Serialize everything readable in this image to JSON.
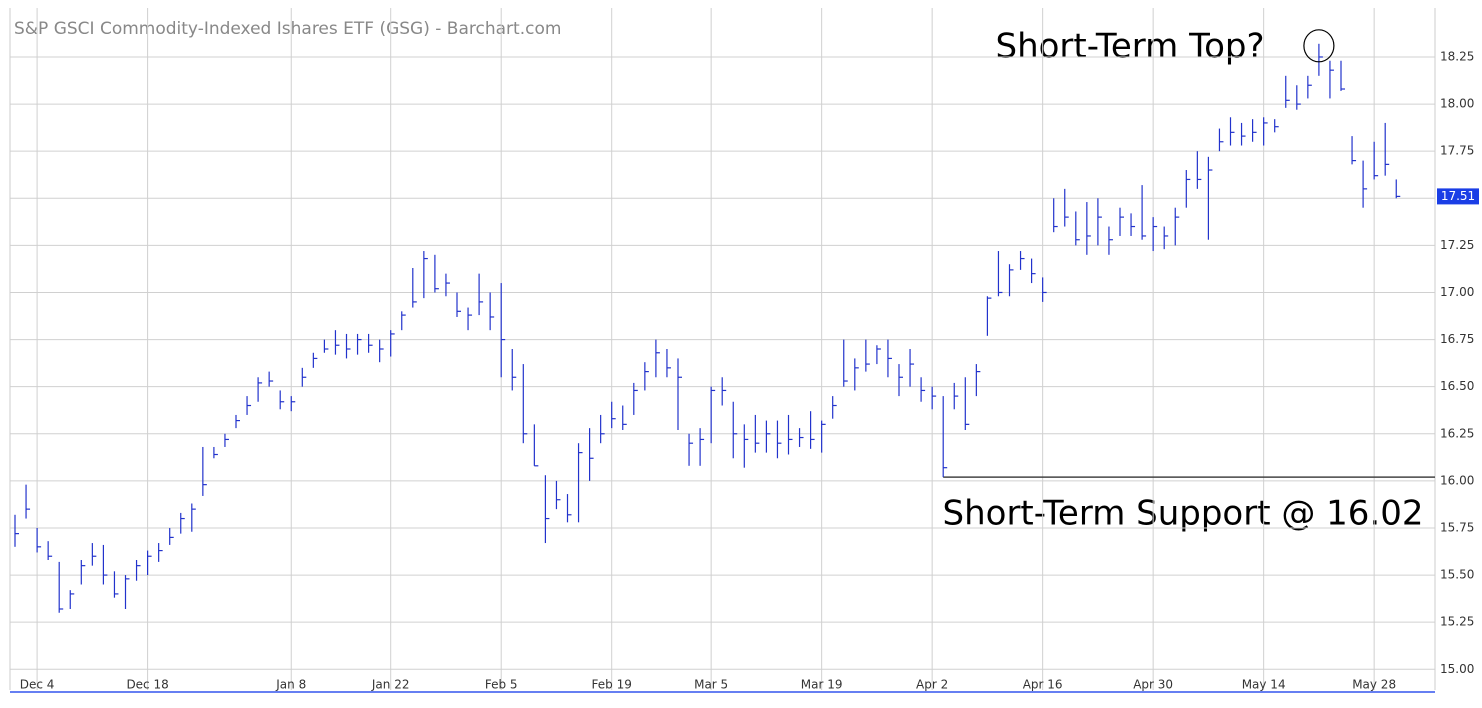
{
  "chart_data": {
    "type": "hlc",
    "title": "S&P GSCI Commodity-Indexed Ishares ETF (GSG) - Barchart.com",
    "annotations": [
      "Short-Term Top?",
      "Short-Term Support @ 16.02"
    ],
    "support_level": 16.02,
    "color": "#2233cc",
    "grid": true,
    "ylim": [
      14.89,
      18.51
    ],
    "yticks": [
      {
        "value": 15,
        "label": "15.00"
      },
      {
        "value": 15.25,
        "label": "15.25"
      },
      {
        "value": 15.5,
        "label": "15.50"
      },
      {
        "value": 15.75,
        "label": "15.75"
      },
      {
        "value": 16,
        "label": "16.00"
      },
      {
        "value": 16.25,
        "label": "16.25"
      },
      {
        "value": 16.5,
        "label": "16.50"
      },
      {
        "value": 16.75,
        "label": "16.75"
      },
      {
        "value": 17,
        "label": "17.00"
      },
      {
        "value": 17.25,
        "label": "17.25"
      },
      {
        "value": 17.5,
        "label": "17.50"
      },
      {
        "value": 17.75,
        "label": "17.75"
      },
      {
        "value": 18,
        "label": "18.00"
      },
      {
        "value": 18.25,
        "label": "18.25"
      }
    ],
    "categories": [
      null,
      null,
      "Dec 4",
      null,
      null,
      null,
      null,
      null,
      null,
      null,
      null,
      null,
      "Dec 18",
      null,
      null,
      null,
      null,
      null,
      null,
      null,
      null,
      null,
      null,
      null,
      null,
      "Jan 8",
      null,
      null,
      null,
      null,
      null,
      null,
      null,
      null,
      "Jan 22",
      null,
      null,
      null,
      null,
      null,
      null,
      null,
      null,
      null,
      "Feb 5",
      null,
      null,
      null,
      null,
      null,
      null,
      null,
      null,
      null,
      "Feb 19",
      null,
      null,
      null,
      null,
      null,
      null,
      null,
      null,
      "Mar 5",
      null,
      null,
      null,
      null,
      null,
      null,
      null,
      null,
      null,
      "Mar 19",
      null,
      null,
      null,
      null,
      null,
      null,
      null,
      null,
      null,
      "Apr 2",
      null,
      null,
      null,
      null,
      null,
      null,
      null,
      null,
      null,
      "Apr 16",
      null,
      null,
      null,
      null,
      null,
      null,
      null,
      null,
      null,
      "Apr 30",
      null,
      null,
      null,
      null,
      null,
      null,
      null,
      null,
      null,
      "May 14",
      null,
      null,
      null,
      null,
      null,
      null,
      null,
      null,
      null,
      "May 28",
      null,
      null
    ],
    "high": [
      15.82,
      15.98,
      15.75,
      15.68,
      15.57,
      15.42,
      15.58,
      15.67,
      15.66,
      15.52,
      15.5,
      15.58,
      15.63,
      15.67,
      15.75,
      15.83,
      15.88,
      16.18,
      16.18,
      16.25,
      16.35,
      16.45,
      16.55,
      16.58,
      16.48,
      16.45,
      16.6,
      16.68,
      16.75,
      16.8,
      16.78,
      16.78,
      16.78,
      16.75,
      16.8,
      16.9,
      17.13,
      17.22,
      17.2,
      17.1,
      17.0,
      16.92,
      17.1,
      17.0,
      17.05,
      16.7,
      16.62,
      16.3,
      16.03,
      16.0,
      15.93,
      16.2,
      16.28,
      16.35,
      16.42,
      16.4,
      16.52,
      16.63,
      16.75,
      16.7,
      16.65,
      16.25,
      16.28,
      16.5,
      16.55,
      16.42,
      16.3,
      16.35,
      16.32,
      16.32,
      16.35,
      16.28,
      16.37,
      16.32,
      16.45,
      16.75,
      16.65,
      16.75,
      16.72,
      16.75,
      16.62,
      16.7,
      16.55,
      16.5,
      16.45,
      16.52,
      16.55,
      16.62,
      16.98,
      17.22,
      17.15,
      17.22,
      17.18,
      17.08,
      17.5,
      17.55,
      17.43,
      17.48,
      17.5,
      17.35,
      17.45,
      17.42,
      17.57,
      17.4,
      17.35,
      17.45,
      17.65,
      17.75,
      17.72,
      17.87,
      17.93,
      17.9,
      17.92,
      17.93,
      17.92,
      18.15,
      18.1,
      18.15,
      18.32,
      18.23,
      18.23,
      17.83,
      17.7,
      17.8,
      17.9,
      17.6
    ],
    "low": [
      15.65,
      15.8,
      15.62,
      15.58,
      15.3,
      15.32,
      15.45,
      15.55,
      15.45,
      15.38,
      15.32,
      15.47,
      15.5,
      15.57,
      15.66,
      15.72,
      15.73,
      15.92,
      16.12,
      16.18,
      16.28,
      16.35,
      16.42,
      16.5,
      16.38,
      16.37,
      16.5,
      16.6,
      16.68,
      16.67,
      16.65,
      16.67,
      16.68,
      16.63,
      16.66,
      16.8,
      16.92,
      16.97,
      17.0,
      16.98,
      16.87,
      16.8,
      16.88,
      16.8,
      16.55,
      16.48,
      16.2,
      16.08,
      15.67,
      15.85,
      15.78,
      15.78,
      16.0,
      16.2,
      16.28,
      16.27,
      16.35,
      16.48,
      16.55,
      16.55,
      16.27,
      16.08,
      16.08,
      16.2,
      16.4,
      16.12,
      16.07,
      16.15,
      16.15,
      16.12,
      16.14,
      16.18,
      16.17,
      16.15,
      16.33,
      16.5,
      16.48,
      16.58,
      16.62,
      16.55,
      16.45,
      16.5,
      16.42,
      16.38,
      16.02,
      16.38,
      16.27,
      16.45,
      16.77,
      16.98,
      16.98,
      17.12,
      17.05,
      16.95,
      17.32,
      17.35,
      17.25,
      17.2,
      17.25,
      17.2,
      17.3,
      17.3,
      17.28,
      17.22,
      17.23,
      17.25,
      17.45,
      17.55,
      17.28,
      17.75,
      17.78,
      17.78,
      17.8,
      17.78,
      17.85,
      17.98,
      17.97,
      18.03,
      18.15,
      18.03,
      18.07,
      17.68,
      17.45,
      17.6,
      17.62,
      17.5
    ],
    "close": [
      15.72,
      15.85,
      15.65,
      15.6,
      15.32,
      15.4,
      15.55,
      15.6,
      15.5,
      15.4,
      15.48,
      15.55,
      15.6,
      15.63,
      15.7,
      15.8,
      15.85,
      15.98,
      16.14,
      16.22,
      16.32,
      16.4,
      16.52,
      16.53,
      16.42,
      16.42,
      16.55,
      16.65,
      16.7,
      16.72,
      16.7,
      16.75,
      16.72,
      16.7,
      16.78,
      16.88,
      16.95,
      17.18,
      17.02,
      17.05,
      16.9,
      16.88,
      16.95,
      16.87,
      16.75,
      16.55,
      16.25,
      16.08,
      15.8,
      15.9,
      15.82,
      16.15,
      16.12,
      16.25,
      16.33,
      16.3,
      16.48,
      16.58,
      16.68,
      16.6,
      16.55,
      16.2,
      16.22,
      16.48,
      16.48,
      16.25,
      16.22,
      16.2,
      16.25,
      16.2,
      16.22,
      16.23,
      16.22,
      16.3,
      16.4,
      16.53,
      16.6,
      16.62,
      16.7,
      16.65,
      16.55,
      16.62,
      16.48,
      16.45,
      16.07,
      16.45,
      16.3,
      16.58,
      16.97,
      17.0,
      17.12,
      17.18,
      17.1,
      17.0,
      17.35,
      17.4,
      17.28,
      17.3,
      17.4,
      17.28,
      17.4,
      17.35,
      17.3,
      17.35,
      17.3,
      17.4,
      17.6,
      17.6,
      17.65,
      17.8,
      17.85,
      17.83,
      17.85,
      17.9,
      17.88,
      18.02,
      18.0,
      18.1,
      18.25,
      18.18,
      18.08,
      17.7,
      17.55,
      17.62,
      17.68,
      17.51
    ]
  }
}
